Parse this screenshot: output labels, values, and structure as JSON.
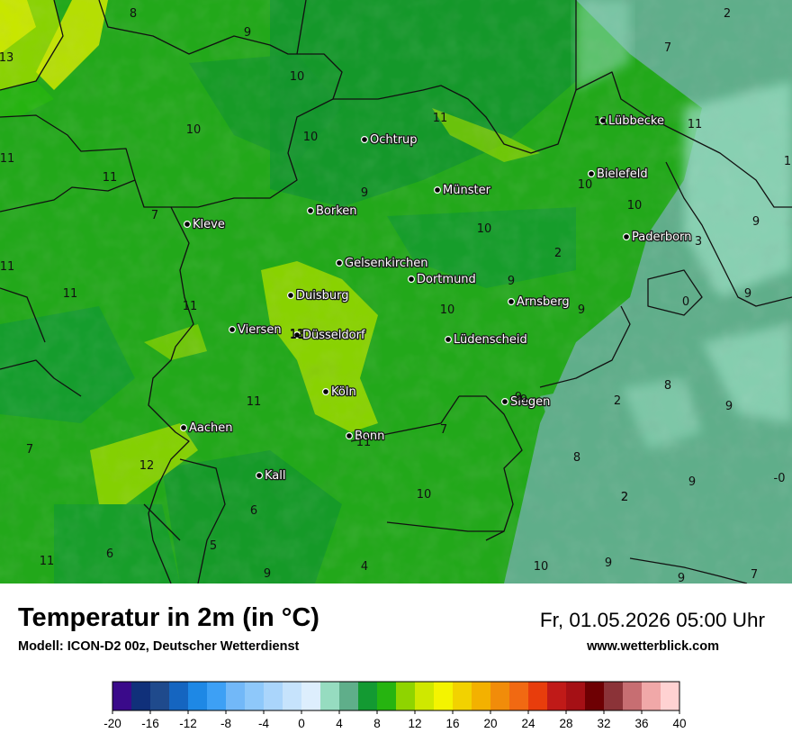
{
  "header": {
    "title": "Temperatur in 2m (in °C)",
    "subtitle": "Modell: ICON-D2 00z, Deutscher Wetterdienst",
    "datetime": "Fr, 01.05.2026 05:00 Uhr",
    "website": "www.wetterblick.com"
  },
  "cities": [
    {
      "name": "Ochtrup"
    },
    {
      "name": "Lübbecke"
    },
    {
      "name": "Bielefeld"
    },
    {
      "name": "Münster"
    },
    {
      "name": "Borken"
    },
    {
      "name": "Kleve"
    },
    {
      "name": "Paderborn"
    },
    {
      "name": "Gelsenkirchen"
    },
    {
      "name": "Dortmund"
    },
    {
      "name": "Duisburg"
    },
    {
      "name": "Arnsberg"
    },
    {
      "name": "Viersen"
    },
    {
      "name": "Düsseldorf"
    },
    {
      "name": "Lüdenscheid"
    },
    {
      "name": "Köln"
    },
    {
      "name": "Siegen"
    },
    {
      "name": "Aachen"
    },
    {
      "name": "Bonn"
    },
    {
      "name": "Kall"
    }
  ],
  "contour_labels": [
    "8",
    "9",
    "13",
    "10",
    "10",
    "10",
    "11",
    "11",
    "11",
    "9",
    "10",
    "11",
    "11",
    "7",
    "11",
    "11",
    "11",
    "12",
    "11",
    "10",
    "9",
    "2",
    "9",
    "12",
    "11",
    "7",
    "6",
    "5",
    "9",
    "4",
    "10",
    "9",
    "7",
    "8",
    "2",
    "0",
    "9",
    "1",
    "2",
    "7",
    "11",
    "10",
    "11",
    "10",
    "3",
    "9",
    "9",
    "9",
    "8",
    "2",
    "9",
    "-0",
    "6",
    "2",
    "9",
    "10",
    "9",
    "7"
  ],
  "legend": {
    "colors": [
      "#3a0a8a",
      "#10307a",
      "#1f4a8c",
      "#1565c0",
      "#1e88e5",
      "#3da0f5",
      "#72b8f8",
      "#8ec8fa",
      "#aad5fb",
      "#c6e3fc",
      "#ddeefd",
      "#96dcc0",
      "#5fae8a",
      "#139a32",
      "#26b410",
      "#8fd400",
      "#cfe800",
      "#f4f400",
      "#f2d200",
      "#f3b100",
      "#f18c0a",
      "#f16912",
      "#e83d0c",
      "#c01a18",
      "#a51015",
      "#6e0003",
      "#8b3338",
      "#c76e72",
      "#f0a8a8",
      "#ffd2d2"
    ],
    "ticks": [
      "-20",
      "-16",
      "-12",
      "-8",
      "-4",
      "0",
      "4",
      "8",
      "12",
      "16",
      "20",
      "24",
      "28",
      "32",
      "36",
      "40"
    ]
  }
}
